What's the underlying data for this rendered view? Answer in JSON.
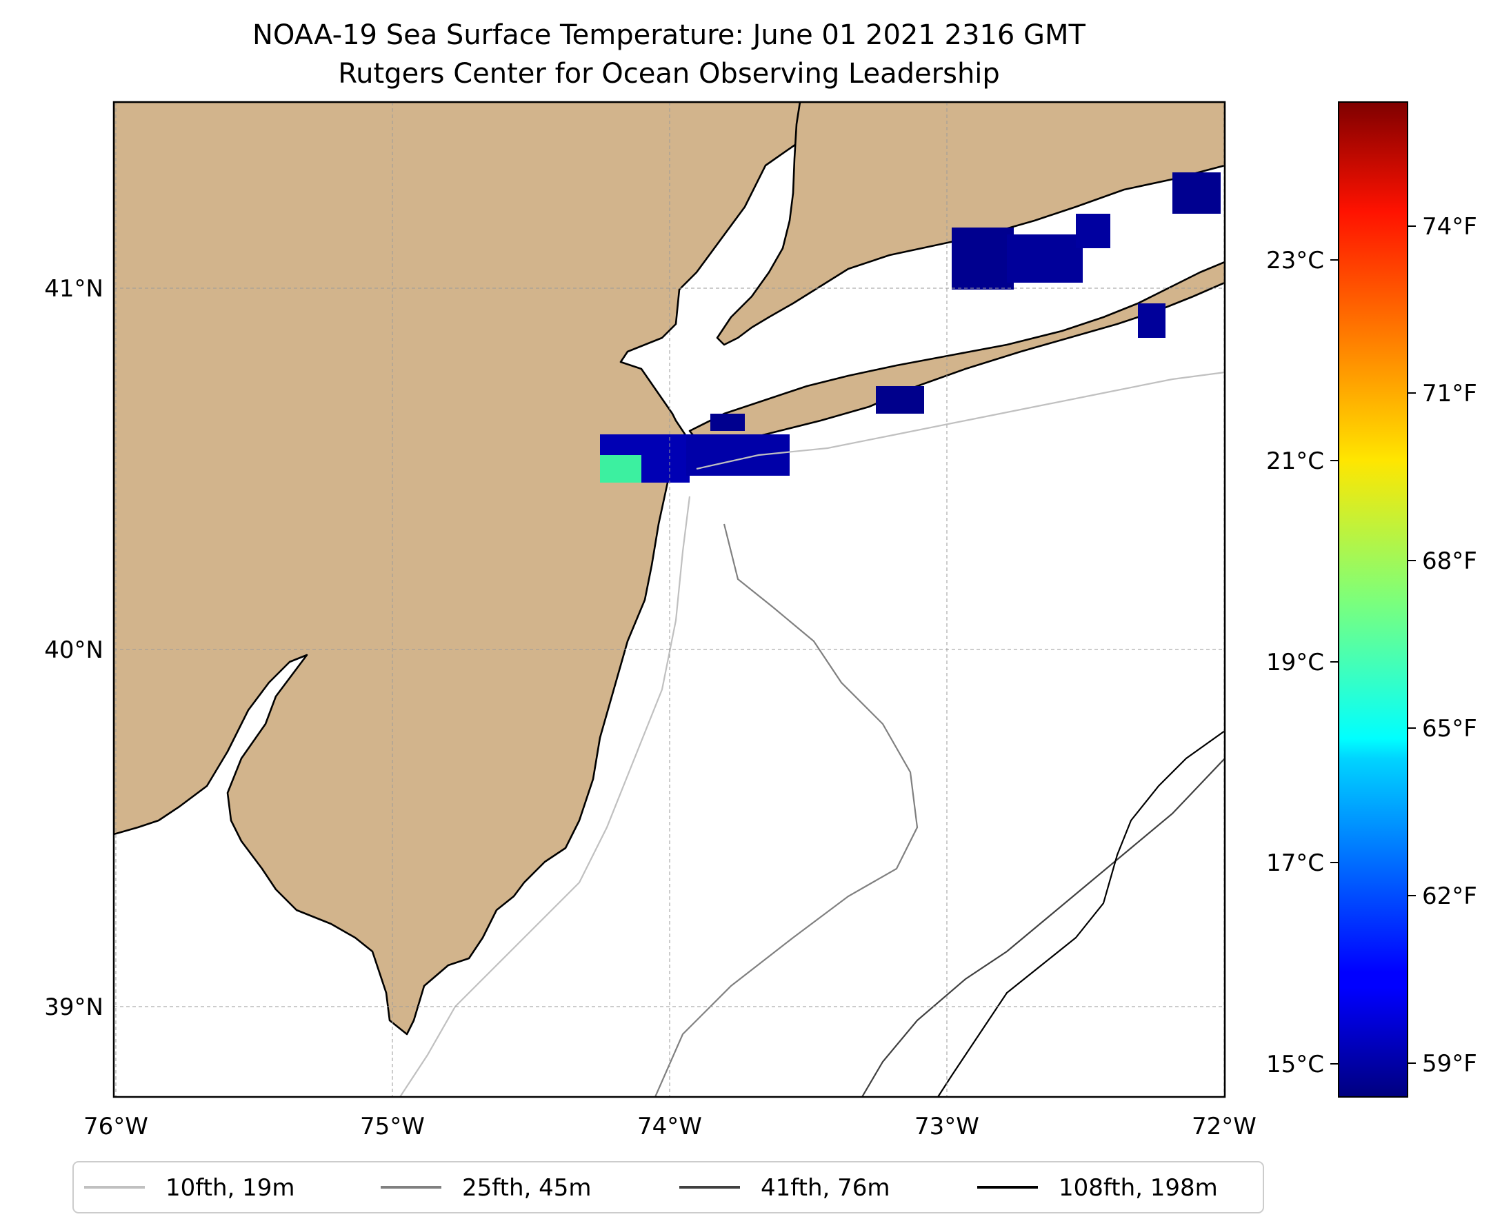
{
  "title": {
    "line1": "NOAA-19 Sea Surface Temperature: June 01 2021 2316 GMT",
    "line2": "Rutgers Center for Ocean Observing Leadership"
  },
  "map": {
    "lon_range": [
      -76,
      -72
    ],
    "lat_range": [
      38.75,
      41.5
    ],
    "land_color": "#d2b48c",
    "ocean_color": "#ffffff",
    "gridlines": "dashed",
    "x_ticks": [
      "76°W",
      "75°W",
      "74°W",
      "73°W",
      "72°W"
    ],
    "y_ticks": [
      "41°N",
      "40°N",
      "39°N"
    ]
  },
  "colorbar": {
    "colormap": "jet",
    "celsius_ticks": [
      "23°C",
      "21°C",
      "19°C",
      "17°C",
      "15°C"
    ],
    "fahrenheit_ticks": [
      "74°F",
      "71°F",
      "68°F",
      "65°F",
      "62°F",
      "59°F"
    ]
  },
  "legend": {
    "items": [
      {
        "label": "10fth, 19m",
        "color": "#c0c0c0"
      },
      {
        "label": "25fth, 45m",
        "color": "#808080"
      },
      {
        "label": "41fth, 76m",
        "color": "#404040"
      },
      {
        "label": "108fth, 198m",
        "color": "#000000"
      }
    ]
  }
}
